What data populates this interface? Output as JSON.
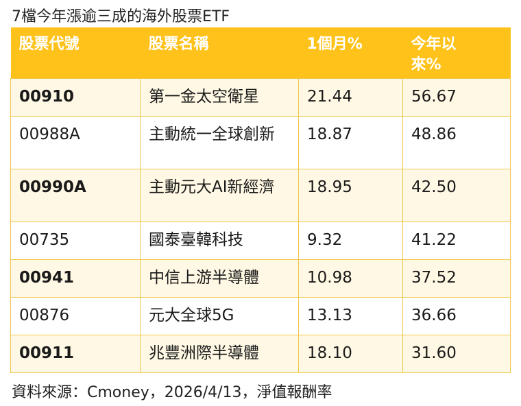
{
  "title": "7檔今年漲逾三成的海外股票ETF",
  "table": {
    "headers": [
      "股票代號",
      "股票名稱",
      "1個月%",
      "今年以\n來%"
    ],
    "rows": [
      [
        "00910",
        "第一金太空衛星",
        "21.44",
        "56.67"
      ],
      [
        "00988A",
        "主動統一全球創新",
        "18.87",
        "48.86"
      ],
      [
        "00990A",
        "主動元大AI新經濟",
        "18.95",
        "42.50"
      ],
      [
        "00735",
        "國泰臺韓科技",
        "9.32",
        "41.22"
      ],
      [
        "00941",
        "中信上游半導體",
        "10.98",
        "37.52"
      ],
      [
        "00876",
        "元大全球5G",
        "13.13",
        "36.66"
      ],
      [
        "00911",
        "兆豐洲際半導體",
        "18.10",
        "31.60"
      ]
    ]
  },
  "footer": {
    "source": "資料來源：Cmoney，2026/4/13，淨值報酬率"
  },
  "colors": {
    "header_bg": "#ffc21a",
    "header_text": "#ffffff",
    "band_row_bg": "#fff8e4",
    "border": "#f0c64a"
  }
}
